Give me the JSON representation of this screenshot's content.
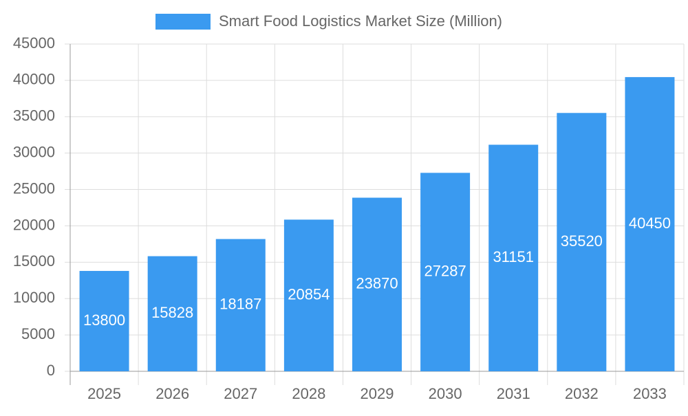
{
  "chart_data": {
    "type": "bar",
    "categories": [
      "2025",
      "2026",
      "2027",
      "2028",
      "2029",
      "2030",
      "2031",
      "2032",
      "2033"
    ],
    "series": [
      {
        "name": "Smart Food Logistics Market Size (Million)",
        "color": "#3a9af0",
        "values": [
          13800,
          15828,
          18187,
          20854,
          23870,
          27287,
          31151,
          35520,
          40450
        ]
      }
    ],
    "ylim": [
      0,
      45000
    ],
    "yticks": [
      0,
      5000,
      10000,
      15000,
      20000,
      25000,
      30000,
      35000,
      40000,
      45000
    ],
    "grid": true,
    "legend": "top"
  }
}
